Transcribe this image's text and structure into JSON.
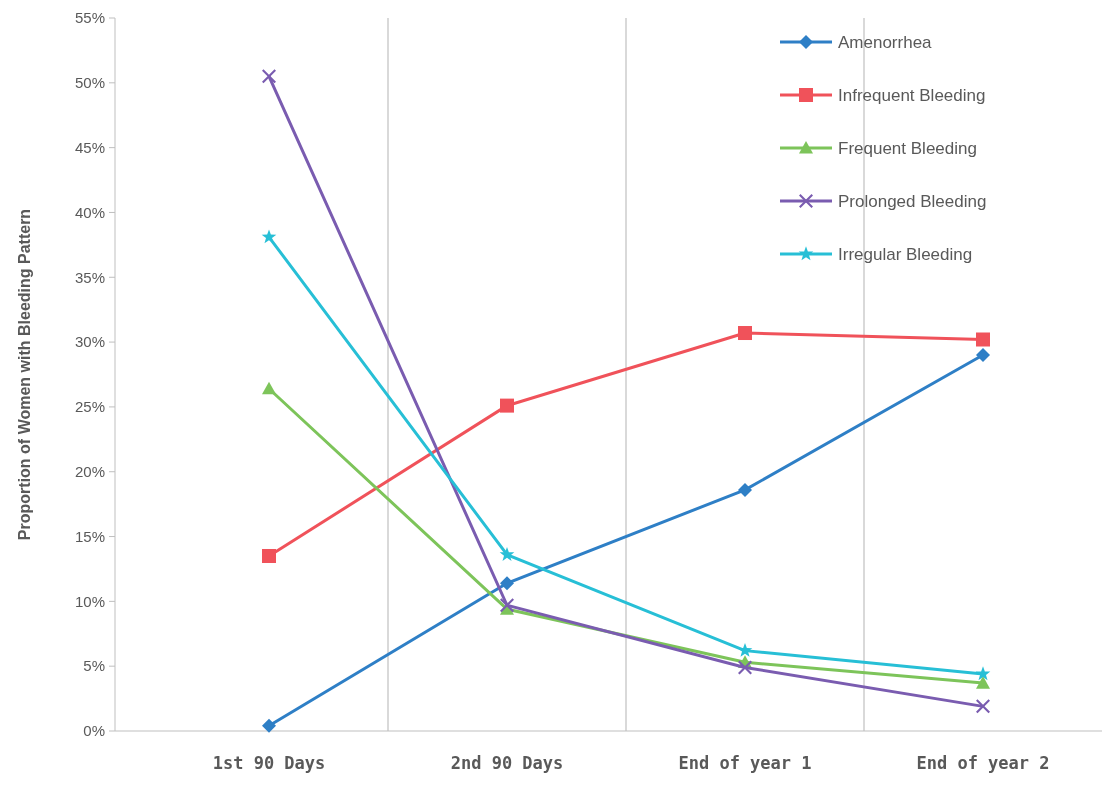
{
  "chart_data": {
    "type": "line",
    "ylabel": "Proportion of Women with Bleeding Pattern",
    "categories": [
      "1st 90 Days",
      "2nd 90 Days",
      "End of year 1",
      "End of year 2"
    ],
    "ylim": [
      0,
      55
    ],
    "yticks": [
      {
        "value": 0,
        "label": "0%"
      },
      {
        "value": 5,
        "label": "5%"
      },
      {
        "value": 10,
        "label": "10%"
      },
      {
        "value": 15,
        "label": "15%"
      },
      {
        "value": 20,
        "label": "20%"
      },
      {
        "value": 25,
        "label": "25%"
      },
      {
        "value": 30,
        "label": "30%"
      },
      {
        "value": 35,
        "label": "35%"
      },
      {
        "value": 40,
        "label": "40%"
      },
      {
        "value": 45,
        "label": "45%"
      },
      {
        "value": 50,
        "label": "50%"
      },
      {
        "value": 55,
        "label": "55%"
      }
    ],
    "grid": "x",
    "legend": "top right",
    "line_style": "solid",
    "series": [
      {
        "name": "Amenorrhea",
        "color": "#2e7fc6",
        "marker": "diamond",
        "values": [
          0.4,
          11.4,
          18.6,
          29.0
        ]
      },
      {
        "name": "Infrequent Bleeding",
        "color": "#f0525a",
        "marker": "square",
        "values": [
          13.5,
          25.1,
          30.7,
          30.2
        ]
      },
      {
        "name": "Frequent Bleeding",
        "color": "#7dc45a",
        "marker": "triangle",
        "values": [
          26.4,
          9.4,
          5.3,
          3.7
        ]
      },
      {
        "name": "Prolonged Bleeding",
        "color": "#7a5cb0",
        "marker": "cross",
        "values": [
          50.5,
          9.7,
          4.9,
          1.9
        ]
      },
      {
        "name": "Irregular Bleeding",
        "color": "#27bfd6",
        "marker": "star",
        "values": [
          38.1,
          13.6,
          6.2,
          4.4
        ]
      }
    ]
  }
}
